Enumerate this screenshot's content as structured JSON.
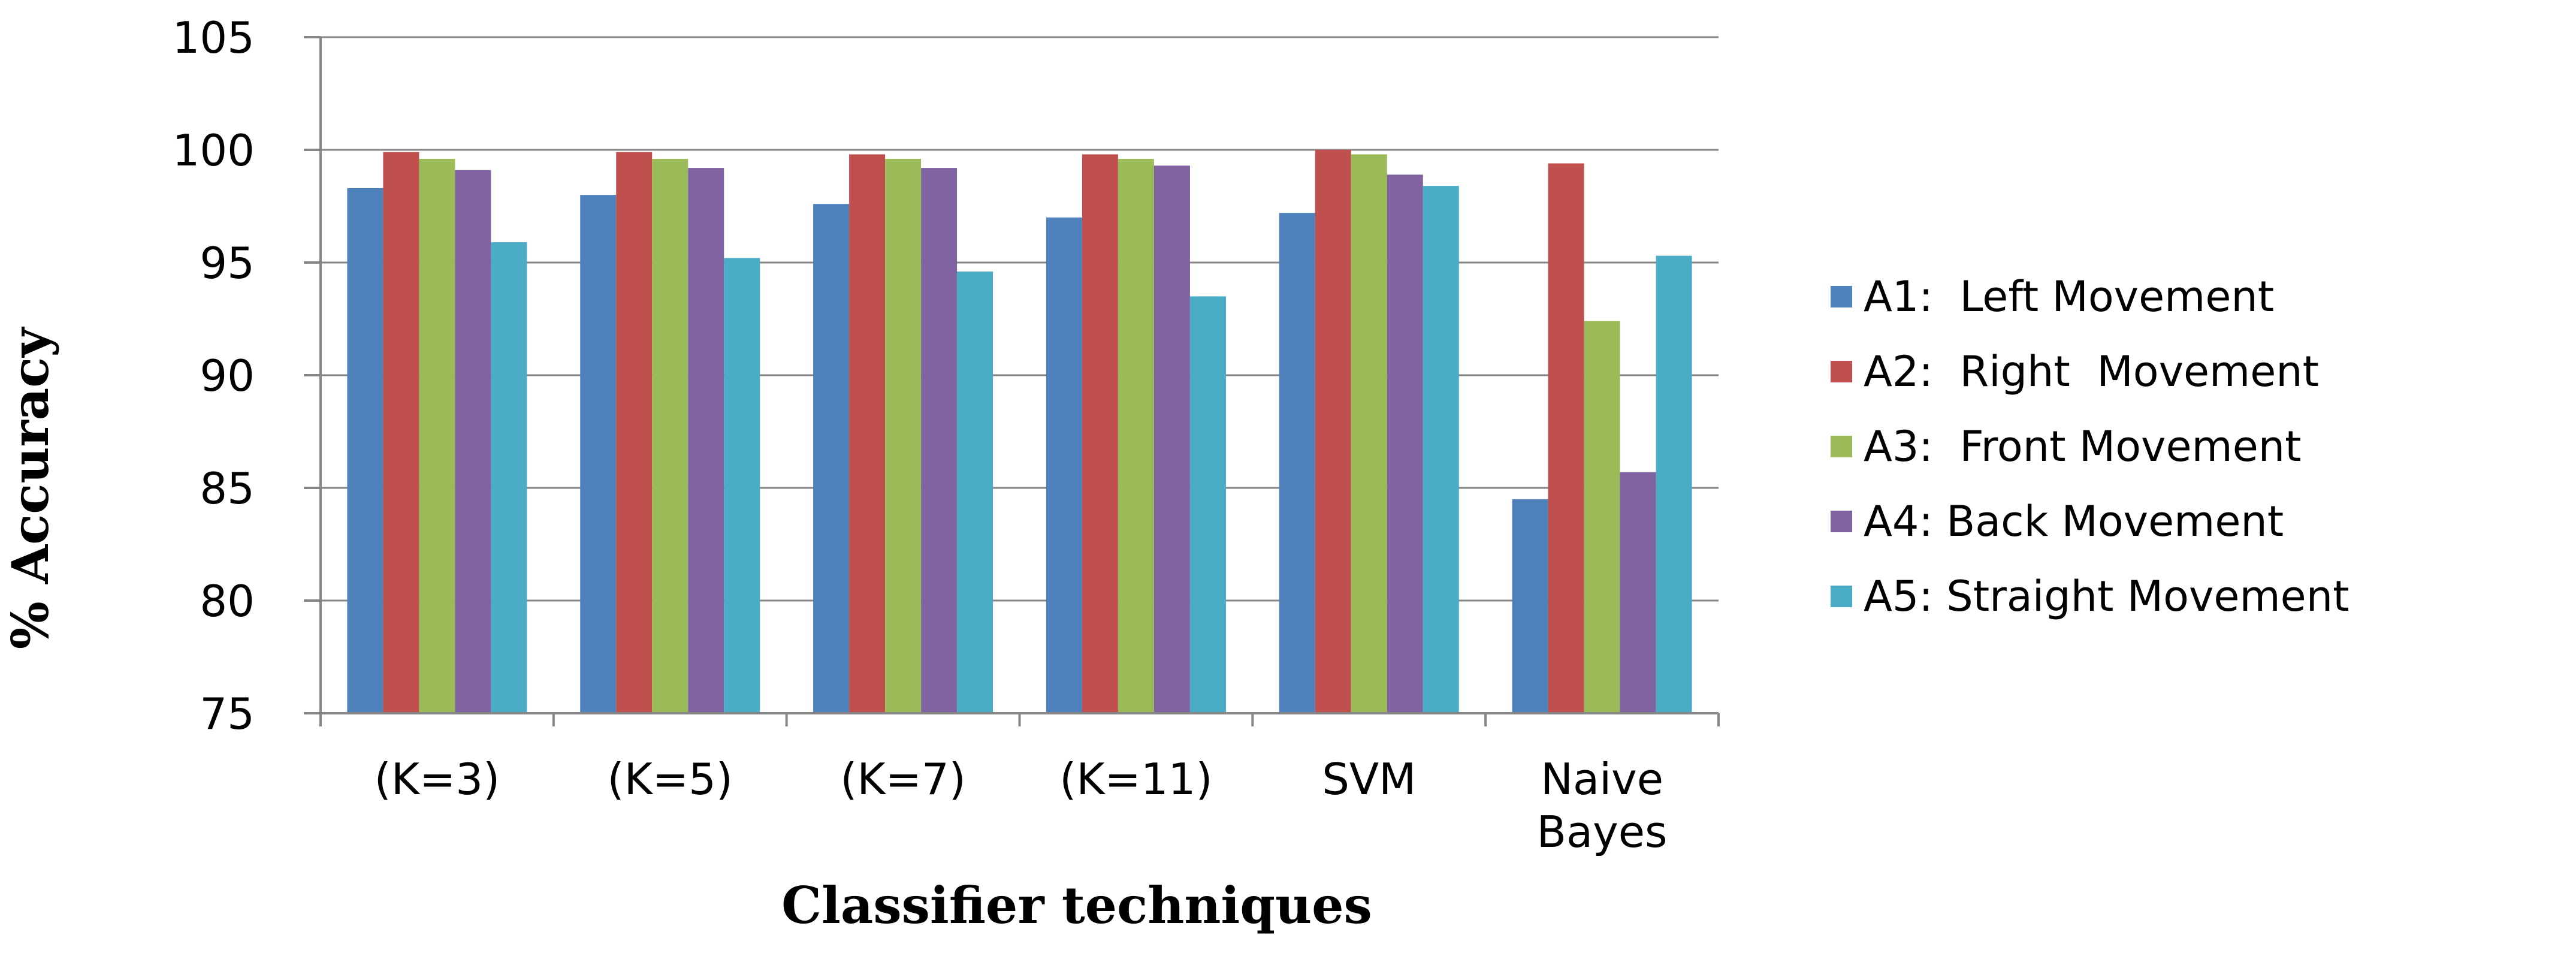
{
  "chart_data": {
    "type": "bar",
    "categories": [
      "(K=3)",
      "(K=5)",
      "(K=7)",
      "(K=11)",
      "SVM",
      "Naive\nBayes"
    ],
    "series": [
      {
        "name": "A1:  Left Movement",
        "color": "#4F81BD",
        "values": [
          98.3,
          98.0,
          97.6,
          97.0,
          97.2,
          84.5
        ]
      },
      {
        "name": "A2:  Right  Movement",
        "color": "#C0504D",
        "values": [
          99.9,
          99.9,
          99.8,
          99.8,
          100.0,
          99.4
        ]
      },
      {
        "name": "A3:  Front Movement",
        "color": "#9BBB59",
        "values": [
          99.6,
          99.6,
          99.6,
          99.6,
          99.8,
          92.4
        ]
      },
      {
        "name": "A4: Back Movement",
        "color": "#8064A2",
        "values": [
          99.1,
          99.2,
          99.2,
          99.3,
          98.9,
          85.7
        ]
      },
      {
        "name": "A5: Straight Movement",
        "color": "#4BACC6",
        "values": [
          95.9,
          95.2,
          94.6,
          93.5,
          98.4,
          95.3
        ]
      }
    ],
    "title": "",
    "xlabel": "Classifier techniques",
    "ylabel": "% Accuracy",
    "ylim": [
      75,
      105
    ],
    "yticks": [
      75,
      80,
      85,
      90,
      95,
      100,
      105
    ],
    "grid": true,
    "legend_position": "right"
  }
}
